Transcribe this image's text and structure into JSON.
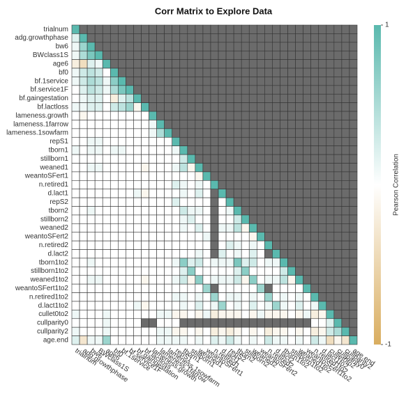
{
  "chart_data": {
    "type": "heatmap",
    "title": "Corr Matrix to Explore Data",
    "variables": [
      "trialnum",
      "adg.growthphase",
      "bw6",
      "BWclass1S",
      "age6",
      "bf0",
      "bf.1service",
      "bf.service1F",
      "bf.gaingestation",
      "bf.lactloss",
      "lameness.growth",
      "lameness.1farrow",
      "lameness.1sowfarm",
      "repS1",
      "tborn1",
      "stillborn1",
      "weaned1",
      "weantoSFert1",
      "n.retired1",
      "d.lact1",
      "repS2",
      "tborn2",
      "stillborn2",
      "weaned2",
      "weantoSFert2",
      "n.retired2",
      "d.lact2",
      "tborn1to2",
      "stillborn1to2",
      "weaned1to2",
      "weantoSFert1to2",
      "n.retired1to2",
      "d.lact1to2",
      "cullet0to2",
      "cullparity0",
      "cullparity2",
      "age.end"
    ],
    "matrix": [
      [
        1
      ],
      [
        0.2,
        1
      ],
      [
        0.1,
        0.6,
        1
      ],
      [
        0.1,
        0.5,
        0.8,
        1
      ],
      [
        -0.2,
        -0.4,
        0.2,
        0.1,
        1
      ],
      [
        0.1,
        0.3,
        0.4,
        0.3,
        0,
        1
      ],
      [
        0.1,
        0.3,
        0.5,
        0.4,
        0.1,
        0.7,
        1
      ],
      [
        0,
        0.2,
        0.4,
        0.3,
        0.1,
        0.5,
        0.8,
        1
      ],
      [
        0,
        0.1,
        0.2,
        0.2,
        0,
        -0.2,
        0.2,
        0.4,
        1
      ],
      [
        0.1,
        0.1,
        0.2,
        0.2,
        0,
        0.3,
        0.4,
        0.6,
        -0.1,
        1
      ],
      [
        0,
        -0.1,
        0,
        0,
        0,
        0,
        0,
        0,
        0,
        0,
        1
      ],
      [
        0,
        0,
        0,
        0,
        0,
        0,
        0,
        0,
        0,
        0,
        0.1,
        1
      ],
      [
        0,
        0,
        0,
        0,
        0,
        0,
        0,
        0,
        0,
        0,
        0.1,
        0.5,
        1
      ],
      [
        0,
        0,
        0.1,
        0.1,
        0,
        0,
        0,
        0,
        0,
        0,
        0,
        0,
        0,
        1
      ],
      [
        0.1,
        0,
        0.1,
        0.1,
        0,
        0.1,
        0.1,
        0,
        0,
        0,
        0,
        0,
        0,
        0.1,
        1
      ],
      [
        0,
        0,
        0,
        0,
        0,
        0,
        0,
        0,
        0,
        0,
        0,
        0,
        0,
        0,
        0.3,
        1
      ],
      [
        0,
        0,
        0.1,
        0.1,
        0,
        0,
        0,
        0,
        0,
        -0.1,
        0,
        0,
        0,
        0.1,
        0.4,
        -0.1,
        1
      ],
      [
        0,
        0,
        0,
        0,
        0,
        0,
        0,
        0,
        0,
        0,
        0,
        0,
        0,
        0,
        0,
        0,
        -0.1,
        1
      ],
      [
        0,
        0,
        0,
        0,
        0,
        0,
        0,
        0,
        0,
        0,
        0,
        0,
        0,
        0.2,
        0.1,
        0,
        0.1,
        0,
        1
      ],
      [
        0,
        0,
        0,
        0,
        0,
        0,
        0,
        0,
        0.1,
        -0.1,
        0,
        0,
        0,
        0,
        0.1,
        0,
        0.2,
        0,
        null,
        1
      ],
      [
        0,
        0,
        0,
        0,
        0,
        0,
        0,
        0,
        0,
        0,
        0,
        0,
        0,
        0.2,
        0,
        0,
        0,
        0,
        null,
        0,
        1
      ],
      [
        0,
        0,
        0.1,
        0,
        0,
        0,
        0,
        0,
        0,
        0,
        0,
        0,
        0,
        0,
        0.3,
        0.1,
        0.1,
        0,
        null,
        0,
        0.1,
        1
      ],
      [
        0,
        0,
        0,
        0,
        0,
        0,
        0,
        0,
        0,
        0,
        0,
        0,
        0,
        0,
        0.1,
        0.2,
        0,
        0,
        null,
        0,
        0,
        0.3,
        1
      ],
      [
        0,
        0,
        0,
        0,
        0,
        0,
        0,
        0,
        0,
        0,
        0,
        0,
        0,
        0,
        0.1,
        0,
        0.2,
        0,
        null,
        0.1,
        0.1,
        0.4,
        -0.1,
        1
      ],
      [
        0,
        0,
        0,
        0,
        0,
        0,
        0,
        0,
        0,
        0,
        0,
        0,
        0,
        0,
        0,
        0,
        0,
        0.1,
        null,
        0,
        0,
        0,
        0,
        -0.1,
        1
      ],
      [
        0,
        0,
        0,
        0,
        0,
        0,
        0,
        0,
        0,
        0,
        0,
        0,
        0,
        0,
        0,
        0,
        0,
        0,
        null,
        0,
        0.2,
        0.1,
        0,
        0.1,
        0,
        1
      ],
      [
        0,
        0,
        0,
        0,
        0,
        0,
        0,
        0,
        0,
        0,
        0,
        0,
        0,
        0,
        0,
        0,
        0.1,
        0,
        null,
        0.2,
        0,
        0.1,
        0,
        0.2,
        0,
        null,
        1
      ],
      [
        0,
        0,
        0.1,
        0,
        0,
        0,
        0,
        0,
        0,
        0,
        0,
        0,
        0,
        0.1,
        0.7,
        0.2,
        0.3,
        0,
        0.1,
        0.1,
        0.1,
        0.8,
        0.2,
        0.3,
        0,
        0.1,
        0.1,
        1
      ],
      [
        0,
        0,
        0,
        0,
        0,
        0,
        0,
        0,
        0,
        0,
        0,
        0,
        0,
        0,
        0.2,
        0.7,
        0,
        0,
        0,
        0,
        0,
        0.2,
        0.7,
        0,
        0,
        0,
        0,
        0.3,
        1
      ],
      [
        0,
        0,
        0.1,
        0.1,
        0,
        0,
        0,
        0,
        0,
        -0.1,
        0,
        0,
        0,
        0.1,
        0.3,
        -0.1,
        0.7,
        0,
        0.1,
        0.1,
        0.1,
        0.3,
        -0.1,
        0.7,
        0,
        0.1,
        0.1,
        0.4,
        -0.1,
        1
      ],
      [
        0,
        0,
        0,
        0,
        0,
        0,
        0,
        0,
        0,
        0,
        0,
        0,
        0,
        0,
        0,
        0,
        0,
        0.6,
        null,
        0,
        0,
        0,
        0,
        0,
        0.6,
        null,
        0,
        0,
        0,
        0,
        1
      ],
      [
        0,
        0,
        0,
        0,
        0,
        0,
        0,
        0,
        0,
        0,
        0,
        0,
        0,
        0.1,
        0.1,
        0,
        0.1,
        0,
        0.6,
        0,
        0.1,
        0.1,
        0,
        0.1,
        0,
        0.6,
        0,
        0.1,
        0,
        0.1,
        0,
        1
      ],
      [
        0,
        0,
        0,
        0,
        0,
        0,
        0,
        0,
        0.1,
        -0.1,
        0,
        0,
        0,
        0,
        0.1,
        0,
        0.2,
        0,
        0.1,
        0.6,
        0,
        0.1,
        0,
        0.2,
        0,
        0.1,
        0.6,
        0.1,
        0,
        0.2,
        0,
        0.1,
        1
      ],
      [
        0.1,
        0,
        0,
        0,
        0.1,
        0,
        0,
        0,
        0,
        0,
        0,
        0.1,
        0.1,
        -0.1,
        -0.1,
        0,
        -0.1,
        0.1,
        -0.2,
        -0.1,
        -0.1,
        -0.1,
        0,
        -0.1,
        0.1,
        -0.1,
        -0.1,
        -0.1,
        0,
        -0.1,
        0.1,
        -0.2,
        -0.1,
        1
      ],
      [
        0,
        0,
        0,
        0,
        0.1,
        0,
        0,
        0,
        0,
        null,
        null,
        0,
        0,
        0,
        null,
        null,
        null,
        null,
        null,
        null,
        null,
        null,
        null,
        null,
        null,
        null,
        null,
        null,
        null,
        null,
        null,
        0,
        0,
        0.2,
        1
      ],
      [
        0.1,
        0,
        0,
        0,
        0.1,
        0,
        0,
        0,
        0,
        0,
        0,
        0.1,
        0.1,
        -0.1,
        -0.1,
        0,
        -0.1,
        0,
        -0.2,
        -0.1,
        -0.2,
        -0.1,
        0,
        -0.1,
        0,
        -0.2,
        -0.1,
        -0.1,
        0,
        -0.1,
        0,
        -0.2,
        -0.1,
        0.3,
        0.5,
        1
      ],
      [
        0.2,
        -0.3,
        0.1,
        0.1,
        0.6,
        0,
        0,
        0,
        0,
        0,
        0,
        0.1,
        0.1,
        0.1,
        0.1,
        0,
        0.1,
        0,
        0.2,
        0.1,
        0.3,
        0.1,
        0,
        0.1,
        0,
        0.3,
        0.1,
        0.1,
        0,
        0.1,
        0,
        0.3,
        0.1,
        -0.4,
        -0.1,
        -0.3,
        1
      ]
    ],
    "colors": {
      "low": "#d9ad5f",
      "mid": "#ffffff",
      "high": "#5ab9ae"
    },
    "na_color": "#6b6b6b",
    "clim": [
      -1,
      1
    ],
    "cticks": [
      -1,
      1
    ],
    "colorbar_label": "Pearson Correlation"
  }
}
